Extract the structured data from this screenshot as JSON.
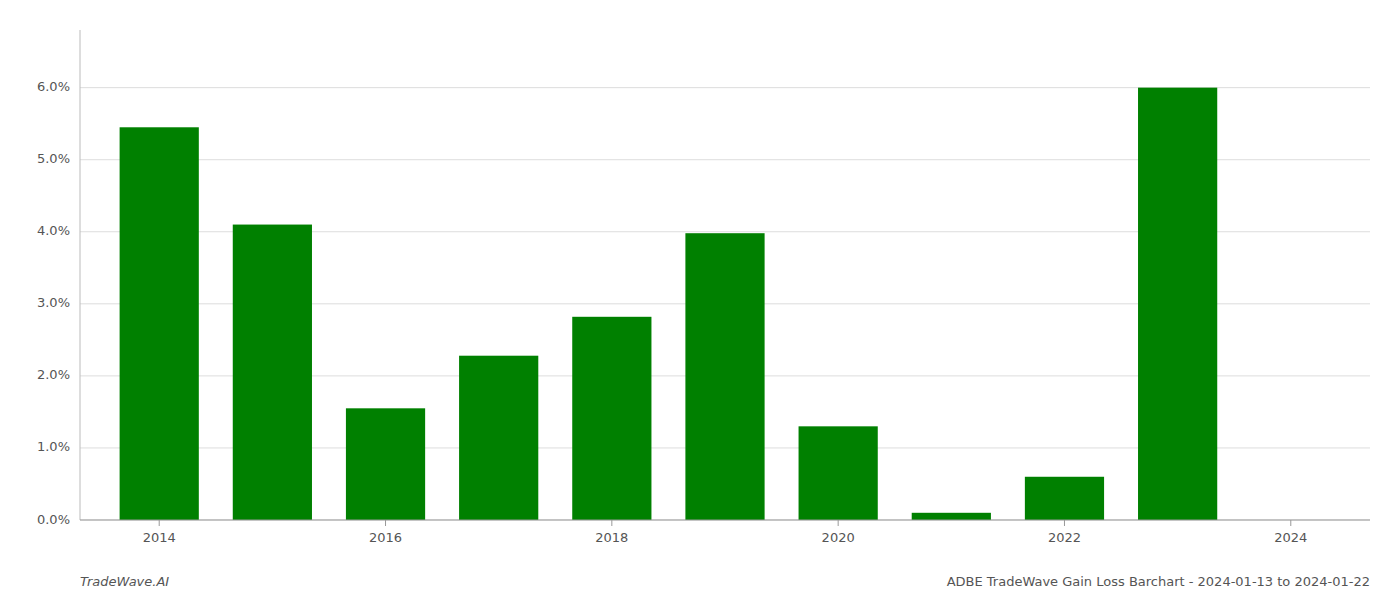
{
  "chart_data": {
    "type": "bar",
    "x": [
      2014,
      2015,
      2016,
      2017,
      2018,
      2019,
      2020,
      2021,
      2022,
      2023
    ],
    "values": [
      0.0545,
      0.041,
      0.0155,
      0.0228,
      0.0282,
      0.0398,
      0.013,
      0.001,
      0.006,
      0.06
    ],
    "color": "#008000",
    "xlim": [
      2013.3,
      2024.7
    ],
    "xticks": [
      2014,
      2016,
      2018,
      2020,
      2022,
      2024
    ],
    "ylim": [
      0,
      0.068
    ],
    "yticks": [
      {
        "value": 0.0,
        "label": "0.0%"
      },
      {
        "value": 0.01,
        "label": "1.0%"
      },
      {
        "value": 0.02,
        "label": "2.0%"
      },
      {
        "value": 0.03,
        "label": "3.0%"
      },
      {
        "value": 0.04,
        "label": "4.0%"
      },
      {
        "value": 0.05,
        "label": "5.0%"
      },
      {
        "value": 0.06,
        "label": "6.0%"
      }
    ],
    "grid": true,
    "annotations": [
      "TradeWave.AI",
      "ADBE TradeWave Gain Loss Barchart - 2024-01-13 to 2024-01-22"
    ]
  }
}
